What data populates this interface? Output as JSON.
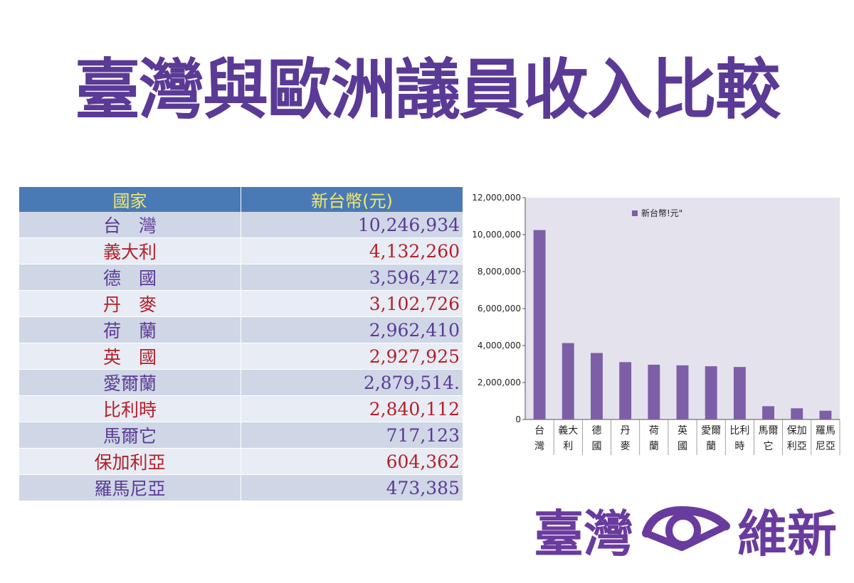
{
  "title": "臺灣與歐洲議員收入比較",
  "table": {
    "headers": [
      "國家",
      "新台幣(元)"
    ],
    "rows": [
      {
        "country": "台　灣",
        "amount": "10,246,934",
        "color": "#5b3a96"
      },
      {
        "country": "義大利",
        "amount": "4,132,260",
        "color": "#b3202a"
      },
      {
        "country": "德　國",
        "amount": "3,596,472",
        "color": "#5b3a96"
      },
      {
        "country": "丹　麥",
        "amount": "3,102,726",
        "color": "#b3202a"
      },
      {
        "country": "荷　蘭",
        "amount": "2,962,410",
        "color": "#5b3a96"
      },
      {
        "country": "英　國",
        "amount": "2,927,925",
        "color": "#b3202a"
      },
      {
        "country": "愛爾蘭",
        "amount": "2,879,514.",
        "color": "#5b3a96"
      },
      {
        "country": "比利時",
        "amount": "2,840,112",
        "color": "#b3202a"
      },
      {
        "country": "馬爾它",
        "amount": "717,123",
        "color": "#5b3a96"
      },
      {
        "country": "保加利亞",
        "amount": "604,362",
        "color": "#b3202a"
      },
      {
        "country": "羅馬尼亞",
        "amount": "473,385",
        "color": "#5b3a96"
      }
    ]
  },
  "chart_data": {
    "type": "bar",
    "categories": [
      [
        "台",
        "灣"
      ],
      [
        "義大",
        "利"
      ],
      [
        "德",
        "國"
      ],
      [
        "丹",
        "麥"
      ],
      [
        "荷",
        "蘭"
      ],
      [
        "英",
        "國"
      ],
      [
        "愛爾",
        "蘭"
      ],
      [
        "比利",
        "時"
      ],
      [
        "馬爾",
        "它"
      ],
      [
        "保加",
        "利亞"
      ],
      [
        "羅馬",
        "尼亞"
      ]
    ],
    "series": [
      {
        "name": "新台幣!元\"",
        "values": [
          10246934,
          4132260,
          3596472,
          3102726,
          2962410,
          2927925,
          2879514,
          2840112,
          717123,
          604362,
          473385
        ]
      }
    ],
    "yticks": [
      "0",
      "2,000,000",
      "4,000,000",
      "6,000,000",
      "8,000,000",
      "10,000,000",
      "12,000,000"
    ],
    "ylim": [
      0,
      12000000
    ],
    "grid": false,
    "legend": "top-right",
    "bar_color": "#7c5fa6",
    "plot_bg": "#e4e2ec"
  },
  "logo": {
    "left": "臺灣",
    "right": "維新"
  },
  "colors": {
    "accent": "#5b3a96",
    "header_bg": "#4a7ab5",
    "header_text": "#f1e96b"
  }
}
